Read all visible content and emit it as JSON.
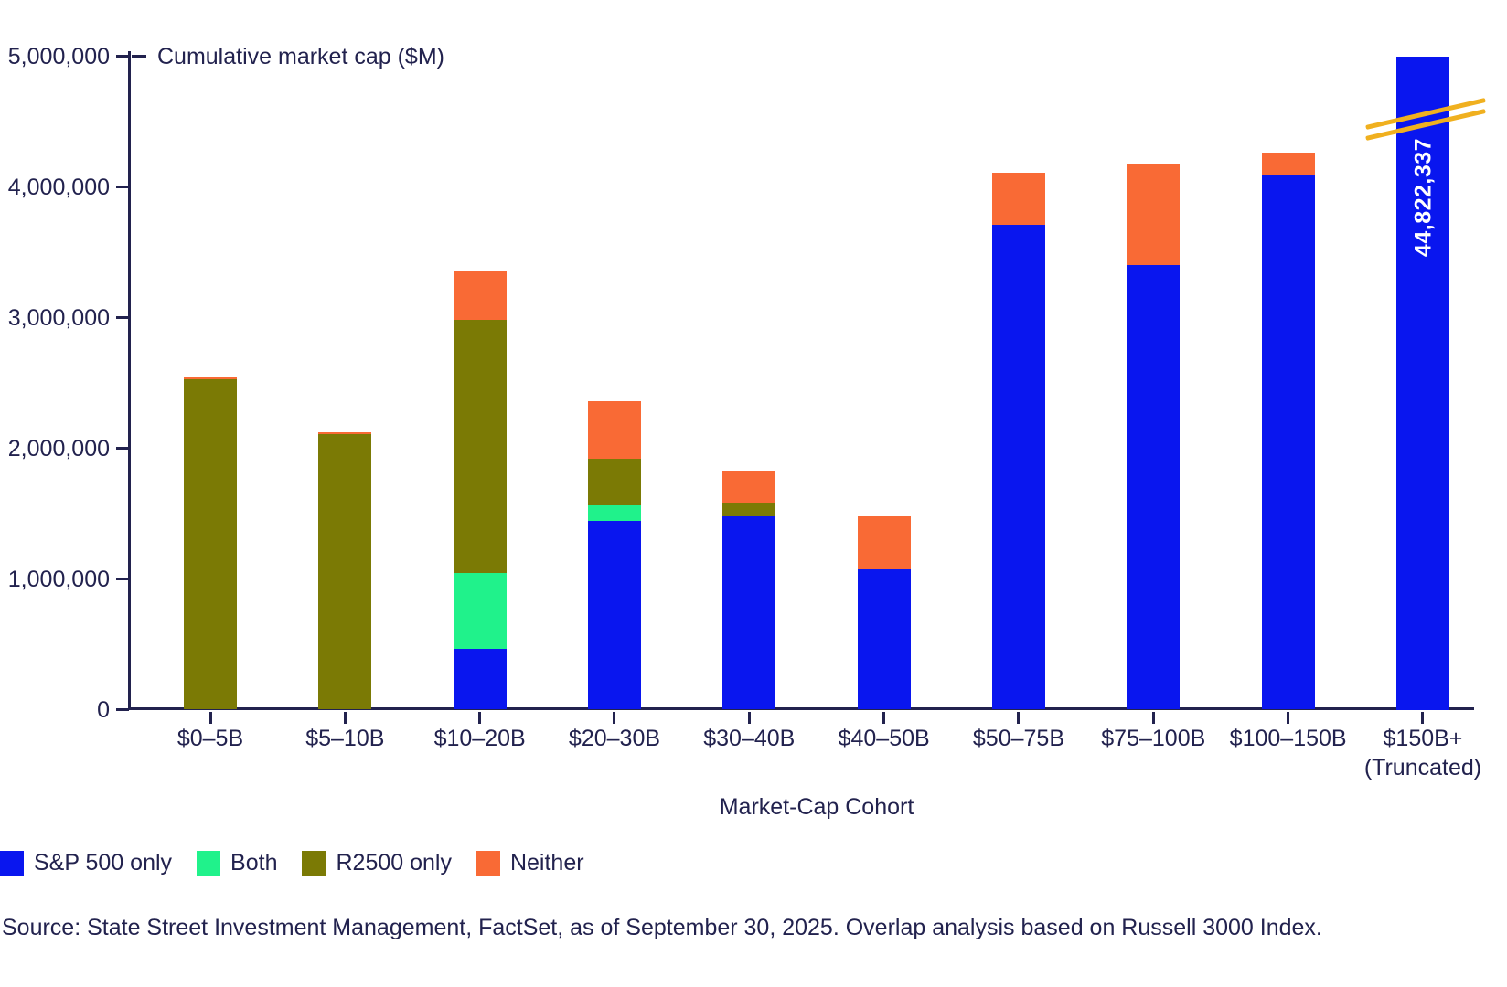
{
  "page": {
    "background": "#ffffff",
    "text_color": "#22224e",
    "axis_color": "#22224e"
  },
  "chart_data": {
    "type": "bar",
    "stacked": true,
    "title": "Cumulative market cap ($M)",
    "xlabel": "Market-Cap Cohort",
    "ylabel": "Cumulative market cap ($M)",
    "ylim": [
      0,
      5000000
    ],
    "grid": false,
    "legend_position": "bottom-left",
    "y_ticks": [
      0,
      1000000,
      2000000,
      3000000,
      4000000,
      5000000
    ],
    "y_tick_labels": [
      "0",
      "1,000,000",
      "2,000,000",
      "3,000,000",
      "4,000,000",
      "5,000,000"
    ],
    "categories": [
      "$0–5B",
      "$5–10B",
      "$10–20B",
      "$20–30B",
      "$30–40B",
      "$40–50B",
      "$50–75B",
      "$75–100B",
      "$100–150B",
      "$150B+"
    ],
    "series": [
      {
        "name": "S&P 500 only",
        "color": "#0916ef",
        "values": [
          0,
          0,
          465000,
          1445000,
          1480000,
          1075000,
          3710000,
          3405000,
          4090000,
          5000000
        ]
      },
      {
        "name": "Both",
        "color": "#20f28b",
        "values": [
          0,
          0,
          580000,
          120000,
          0,
          0,
          0,
          0,
          0,
          0
        ]
      },
      {
        "name": "R2500 only",
        "color": "#7b7a05",
        "values": [
          2530000,
          2105000,
          1940000,
          355000,
          105000,
          0,
          0,
          0,
          0,
          0
        ]
      },
      {
        "name": "Neither",
        "color": "#f96a35",
        "values": [
          20000,
          15000,
          365000,
          440000,
          245000,
          405000,
          400000,
          775000,
          175000,
          0
        ]
      }
    ],
    "truncated_bar": {
      "category_index": 9,
      "note": "(Truncated)",
      "annotation": "44,822,337",
      "actual_total": 44822337,
      "displayed_height_value": 5000000,
      "break_line_color": "#f0b01f",
      "annotation_text_color": "#ffffff"
    }
  },
  "source_note": "Source: State Street Investment Management, FactSet, as of September 30, 2025. Overlap analysis based on Russell 3000 Index."
}
